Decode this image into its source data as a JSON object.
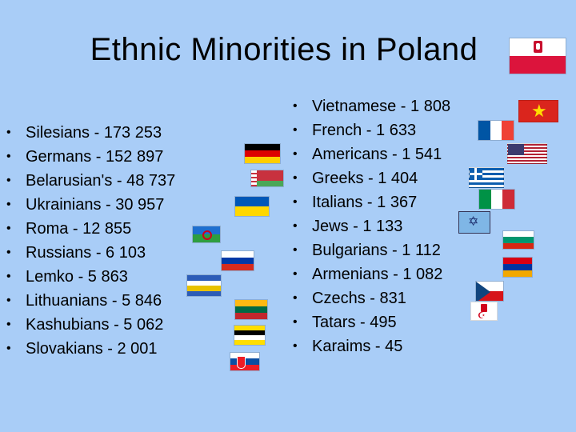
{
  "slide": {
    "title": "Ethnic Minorities in Poland",
    "left_list": [
      {
        "bullet": "•",
        "text": "Silesians - 173 253"
      },
      {
        "bullet": "•",
        "text": "Germans - 152 897"
      },
      {
        "bullet": "•",
        "text": "Belarusian's - 48 737"
      },
      {
        "bullet": "•",
        "text": "Ukrainians - 30 957"
      },
      {
        "bullet": "•",
        "text": "Roma - 12 855"
      },
      {
        "bullet": "•",
        "text": "Russians - 6 103"
      },
      {
        "bullet": "•",
        "text": "Lemko - 5 863"
      },
      {
        "bullet": "•",
        "text": "Lithuanians - 5 846"
      },
      {
        "bullet": "•",
        "text": "Kashubians - 5 062"
      },
      {
        "bullet": "•",
        "text": "Slovakians - 2 001"
      }
    ],
    "right_list": [
      {
        "bullet": "•",
        "text": "Vietnamese - 1 808"
      },
      {
        "bullet": "•",
        "text": "French - 1 633"
      },
      {
        "bullet": "•",
        "text": "Americans - 1 541"
      },
      {
        "bullet": "•",
        "text": "Greeks - 1 404"
      },
      {
        "bullet": "•",
        "text": "Italians - 1 367"
      },
      {
        "bullet": "•",
        "text": "Jews - 1 133"
      },
      {
        "bullet": "•",
        "text": "Bulgarians - 1 112"
      },
      {
        "bullet": "•",
        "text": "Armenians - 1 082"
      },
      {
        "bullet": "•",
        "text": "Czechs - 831"
      },
      {
        "bullet": "•",
        "text": "Tatars - 495"
      },
      {
        "bullet": "•",
        "text": "Karaims - 45"
      }
    ]
  },
  "colors": {
    "background": "#a9cdf7",
    "poland_white": "#ffffff",
    "poland_red": "#dc143c"
  }
}
